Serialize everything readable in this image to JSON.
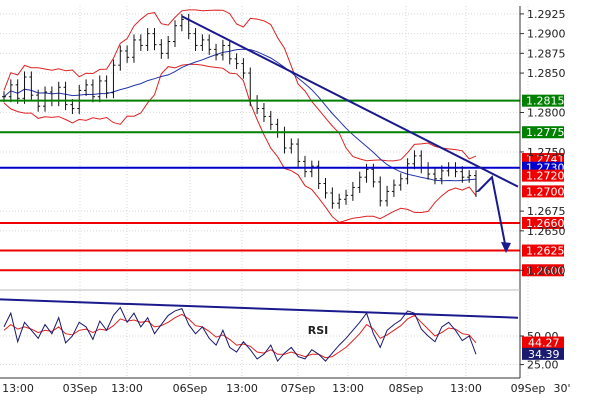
{
  "chart_data": {
    "type": "line",
    "subtype": "forex candlestick chart with Bollinger Bands, support/resistance levels, trendlines and RSI subpanel",
    "price_axis": {
      "range": [
        1.2575,
        1.2935
      ],
      "ticks": [
        "1.2925",
        "1.2900",
        "1.2875",
        "1.2850",
        "1.2800",
        "1.2750",
        "1.2675",
        "1.2650",
        "1.2600"
      ]
    },
    "time_axis": {
      "ticks": [
        "13:00",
        "03Sep",
        "13:00",
        "06Sep",
        "13:00",
        "07Sep",
        "13:00",
        "08Sep",
        "13:00",
        "09Sep",
        "30'"
      ]
    },
    "levels": [
      {
        "value": 1.2815,
        "label": "1.2815",
        "color": "#008000"
      },
      {
        "value": 1.2775,
        "label": "1.2775",
        "color": "#008000"
      },
      {
        "value": 1.2741,
        "label": "1.2741",
        "color": "#ee0000"
      },
      {
        "value": 1.273,
        "label": "1.2730",
        "color": "#0000cc"
      },
      {
        "value": 1.272,
        "label": "1.2720",
        "color": "#ee0000"
      },
      {
        "value": 1.27,
        "label": "1.2700",
        "color": "#ee0000"
      },
      {
        "value": 1.266,
        "label": "1.2660",
        "color": "#ee0000"
      },
      {
        "value": 1.2625,
        "label": "1.2625",
        "color": "#ee0000"
      },
      {
        "value": 1.26,
        "label": "1.2600",
        "color": "#ee0000"
      }
    ],
    "price_series": [
      1.282,
      1.2835,
      1.2818,
      1.2845,
      1.2822,
      1.2808,
      1.2826,
      1.2815,
      1.2832,
      1.281,
      1.2805,
      1.2828,
      1.2835,
      1.282,
      1.284,
      1.2825,
      1.286,
      1.2878,
      1.287,
      1.2892,
      1.2885,
      1.29,
      1.2886,
      1.2875,
      1.289,
      1.291,
      1.2918,
      1.29,
      1.2885,
      1.2892,
      1.288,
      1.2873,
      1.2885,
      1.2868,
      1.2862,
      1.285,
      1.2815,
      1.2805,
      1.2795,
      1.2785,
      1.2775,
      1.2755,
      1.276,
      1.2738,
      1.2725,
      1.2732,
      1.271,
      1.2698,
      1.2685,
      1.269,
      1.2695,
      1.2705,
      1.2718,
      1.2728,
      1.2712,
      1.2688,
      1.27,
      1.2708,
      1.2716,
      1.2735,
      1.2745,
      1.273,
      1.2722,
      1.2716,
      1.2726,
      1.273,
      1.2725,
      1.2718,
      1.272,
      1.27
    ],
    "rsi": {
      "title": "RSI",
      "axis_ticks": [
        "50.00",
        "25.00"
      ],
      "value_labels": [
        {
          "value": "44.27",
          "color": "#ee0000"
        },
        {
          "value": "34.39",
          "color": "#1a1a6e"
        }
      ],
      "rsi_series": [
        58,
        70,
        45,
        62,
        55,
        48,
        60,
        52,
        66,
        44,
        50,
        62,
        58,
        47,
        63,
        55,
        68,
        75,
        62,
        70,
        58,
        66,
        52,
        60,
        68,
        72,
        74,
        60,
        52,
        58,
        48,
        42,
        55,
        40,
        36,
        45,
        38,
        30,
        34,
        42,
        28,
        35,
        40,
        32,
        30,
        38,
        34,
        28,
        35,
        42,
        48,
        55,
        62,
        70,
        52,
        40,
        55,
        60,
        64,
        72,
        70,
        56,
        50,
        45,
        58,
        62,
        55,
        46,
        50,
        34
      ],
      "signal_series": [
        55,
        60,
        56,
        58,
        56,
        53,
        55,
        54,
        58,
        52,
        51,
        55,
        56,
        53,
        56,
        55,
        59,
        65,
        63,
        64,
        62,
        63,
        58,
        59,
        62,
        66,
        69,
        65,
        59,
        58,
        54,
        49,
        51,
        47,
        42,
        43,
        41,
        36,
        35,
        38,
        34,
        34,
        36,
        34,
        32,
        34,
        34,
        31,
        32,
        36,
        40,
        46,
        52,
        60,
        56,
        48,
        51,
        55,
        59,
        65,
        68,
        62,
        56,
        50,
        53,
        57,
        56,
        52,
        51,
        44
      ]
    }
  }
}
